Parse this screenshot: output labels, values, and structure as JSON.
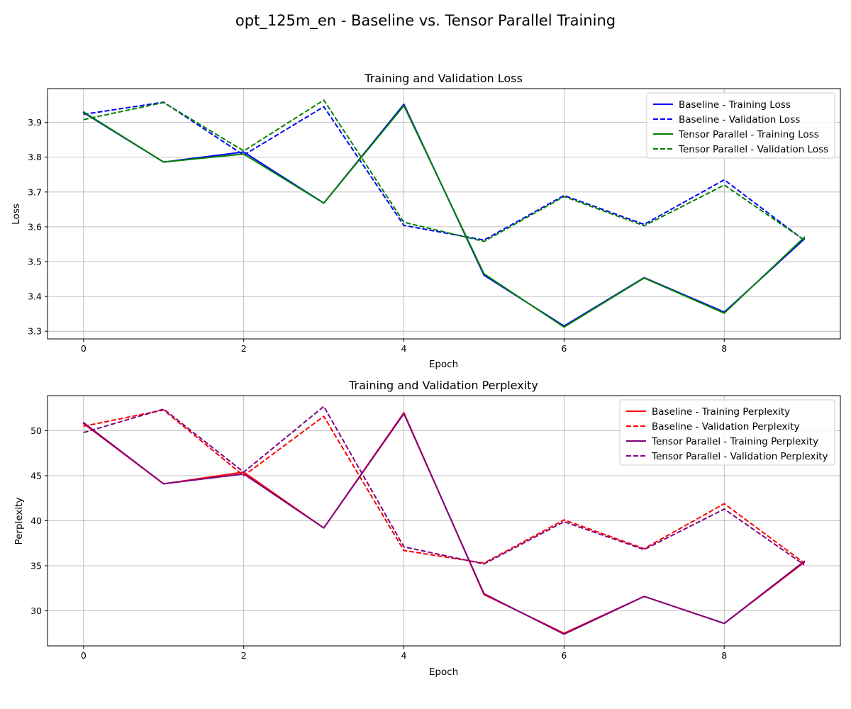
{
  "suptitle": "opt_125m_en - Baseline vs. Tensor Parallel Training",
  "chart_data": [
    {
      "type": "line",
      "title": "Training and Validation Loss",
      "xlabel": "Epoch",
      "ylabel": "Loss",
      "grid": true,
      "legend_position": "top-right",
      "xlim": [
        -0.45,
        9.45
      ],
      "ylim": [
        3.278,
        3.997
      ],
      "xticks": [
        0,
        2,
        4,
        6,
        8
      ],
      "yticks": [
        3.3,
        3.4,
        3.5,
        3.6,
        3.7,
        3.8,
        3.9
      ],
      "ytick_labels": [
        "3.3",
        "3.4",
        "3.5",
        "3.6",
        "3.7",
        "3.8",
        "3.9"
      ],
      "x": [
        0,
        1,
        2,
        3,
        4,
        5,
        6,
        7,
        8,
        9
      ],
      "series": [
        {
          "name": "Baseline - Training Loss",
          "color": "#0000ff",
          "dash": "solid",
          "values": [
            3.928,
            3.786,
            3.815,
            3.668,
            3.952,
            3.461,
            3.315,
            3.454,
            3.355,
            3.565
          ]
        },
        {
          "name": "Baseline - Validation Loss",
          "color": "#0000ff",
          "dash": "dashed",
          "values": [
            3.923,
            3.958,
            3.806,
            3.945,
            3.604,
            3.562,
            3.69,
            3.607,
            3.735,
            3.561
          ]
        },
        {
          "name": "Tensor Parallel - Training Loss",
          "color": "#008000",
          "dash": "solid",
          "values": [
            3.93,
            3.786,
            3.809,
            3.668,
            3.948,
            3.465,
            3.312,
            3.453,
            3.352,
            3.57
          ]
        },
        {
          "name": "Tensor Parallel - Validation Loss",
          "color": "#008000",
          "dash": "dashed",
          "values": [
            3.908,
            3.957,
            3.818,
            3.964,
            3.613,
            3.558,
            3.687,
            3.603,
            3.72,
            3.562
          ]
        }
      ]
    },
    {
      "type": "line",
      "title": "Training and Validation Perplexity",
      "xlabel": "Epoch",
      "ylabel": "Perplexity",
      "grid": true,
      "legend_position": "top-right",
      "xlim": [
        -0.45,
        9.45
      ],
      "ylim": [
        26.1,
        53.9
      ],
      "xticks": [
        0,
        2,
        4,
        6,
        8
      ],
      "yticks": [
        30,
        35,
        40,
        45,
        50
      ],
      "ytick_labels": [
        "30",
        "35",
        "40",
        "45",
        "50"
      ],
      "x": [
        0,
        1,
        2,
        3,
        4,
        5,
        6,
        7,
        8,
        9
      ],
      "series": [
        {
          "name": "Baseline - Training Perplexity",
          "color": "#ff0000",
          "dash": "solid",
          "values": [
            50.8,
            44.1,
            45.4,
            39.2,
            52.0,
            31.8,
            27.5,
            31.6,
            28.6,
            35.4
          ]
        },
        {
          "name": "Baseline - Validation Perplexity",
          "color": "#ff0000",
          "dash": "dashed",
          "values": [
            50.5,
            52.3,
            45.0,
            51.6,
            36.7,
            35.3,
            40.1,
            36.9,
            41.9,
            35.3
          ]
        },
        {
          "name": "Tensor Parallel - Training Perplexity",
          "color": "#800080",
          "dash": "solid",
          "values": [
            50.9,
            44.1,
            45.2,
            39.2,
            51.9,
            31.9,
            27.4,
            31.6,
            28.6,
            35.5
          ]
        },
        {
          "name": "Tensor Parallel - Validation Perplexity",
          "color": "#800080",
          "dash": "dashed",
          "values": [
            49.8,
            52.4,
            45.4,
            52.7,
            37.1,
            35.2,
            39.9,
            36.8,
            41.3,
            35.1
          ]
        }
      ]
    }
  ]
}
